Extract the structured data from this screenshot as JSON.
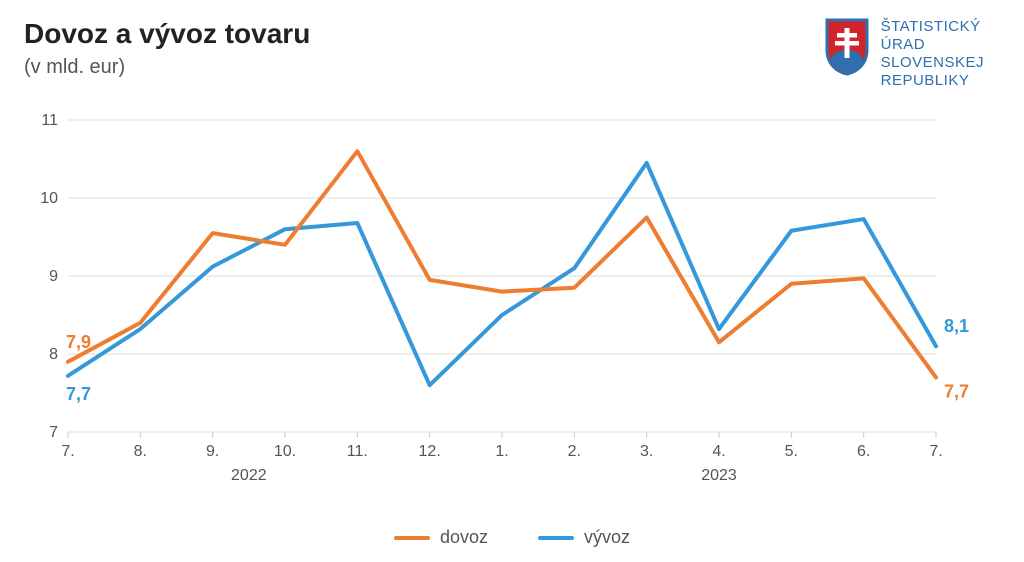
{
  "header": {
    "title": "Dovoz a vývoz tovaru",
    "subtitle": "(v mld. eur)"
  },
  "logo": {
    "line1": "ŠTATISTICKÝ",
    "line2": "ÚRAD",
    "line3": "SLOVENSKEJ",
    "line4": "REPUBLIKY",
    "text_color": "#2f6fb0",
    "shield_red": "#d1232a",
    "shield_blue": "#2f6fb0",
    "cross_white": "#ffffff"
  },
  "chart": {
    "type": "line",
    "background_color": "#ffffff",
    "grid_color": "#dddddd",
    "axis_color": "#cccccc",
    "tick_label_color": "#555555",
    "tick_fontsize": 16,
    "year_label_fontsize": 16,
    "ylim": [
      7,
      11
    ],
    "yticks": [
      7,
      8,
      9,
      10,
      11
    ],
    "ytick_labels": [
      "7",
      "8",
      "9",
      "10",
      "11"
    ],
    "x_categories": [
      "7.",
      "8.",
      "9.",
      "10.",
      "11.",
      "12.",
      "1.",
      "2.",
      "3.",
      "4.",
      "5.",
      "6.",
      "7."
    ],
    "year_labels": [
      {
        "text": "2022",
        "center_index": 2.5
      },
      {
        "text": "2023",
        "center_index": 9
      }
    ],
    "line_width": 4,
    "series": {
      "dovoz": {
        "label": "dovoz",
        "color": "#ed7d31",
        "values": [
          7.9,
          8.4,
          9.55,
          9.4,
          10.6,
          8.95,
          8.8,
          8.85,
          9.75,
          8.15,
          8.9,
          8.97,
          7.7
        ],
        "start_label": "7,9",
        "end_label": "7,7",
        "start_label_offset_y": -14,
        "end_label_offset_y": 20
      },
      "vyvoz": {
        "label": "vývoz",
        "color": "#3498db",
        "values": [
          7.72,
          8.32,
          9.12,
          9.6,
          9.68,
          7.6,
          8.5,
          9.1,
          10.45,
          8.32,
          9.58,
          9.73,
          8.1
        ],
        "start_label": "7,7",
        "end_label": "8,1",
        "start_label_offset_y": 24,
        "end_label_offset_y": -14
      }
    },
    "endpoint_label_fontsize": 18,
    "endpoint_label_fontweight": "bold",
    "legend": {
      "items": [
        "dovoz",
        "vyvoz"
      ],
      "fontsize": 18,
      "swatch_width": 36
    }
  }
}
